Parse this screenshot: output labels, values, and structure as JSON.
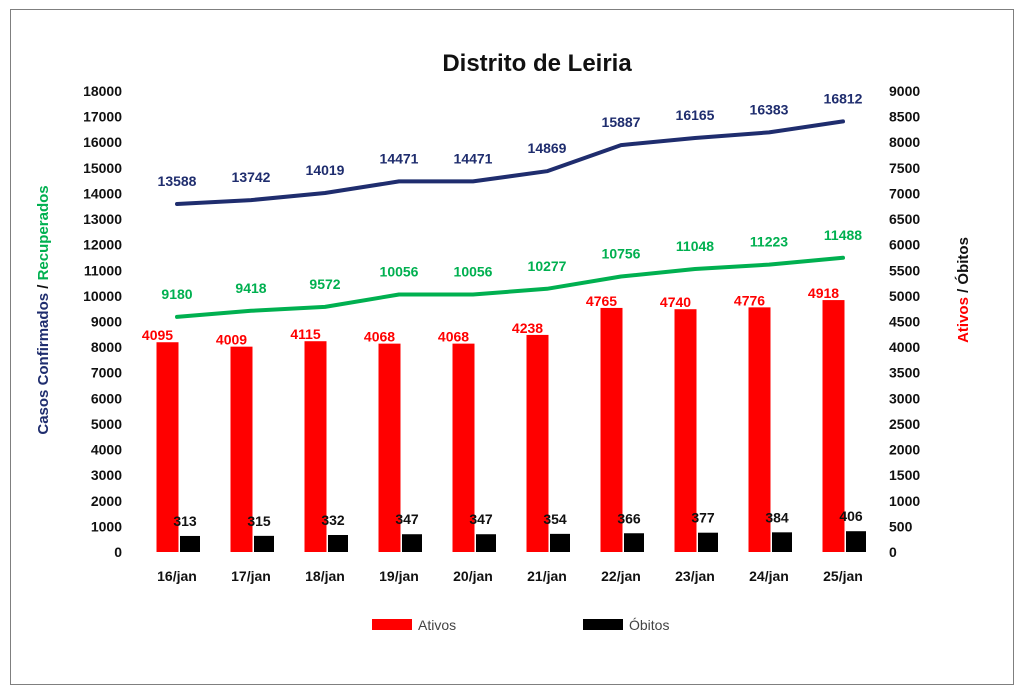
{
  "chart_data": {
    "type": "bar",
    "title": "Distrito de Leiria",
    "categories": [
      "16/jan",
      "17/jan",
      "18/jan",
      "19/jan",
      "20/jan",
      "21/jan",
      "22/jan",
      "23/jan",
      "24/jan",
      "25/jan"
    ],
    "y_left": {
      "ylim": [
        0,
        18000
      ],
      "ticks": [
        "0",
        "1000",
        "2000",
        "3000",
        "4000",
        "5000",
        "6000",
        "7000",
        "8000",
        "9000",
        "10000",
        "11000",
        "12000",
        "13000",
        "14000",
        "15000",
        "16000",
        "17000",
        "18000"
      ],
      "label_parts": [
        {
          "text": "Casos Confirmados",
          "color": "#1f2d6e"
        },
        {
          "text": " / ",
          "color": "#111111"
        },
        {
          "text": "Recuperados",
          "color": "#00b050"
        }
      ]
    },
    "y_right": {
      "ylim": [
        0,
        9000
      ],
      "ticks": [
        "0",
        "500",
        "1000",
        "1500",
        "2000",
        "2500",
        "3000",
        "3500",
        "4000",
        "4500",
        "5000",
        "5500",
        "6000",
        "6500",
        "7000",
        "7500",
        "8000",
        "8500",
        "9000"
      ],
      "label_parts": [
        {
          "text": "Ativos",
          "color": "#ff0000"
        },
        {
          "text": " / ",
          "color": "#111111"
        },
        {
          "text": "Óbitos",
          "color": "#111111"
        }
      ]
    },
    "series": [
      {
        "name": "",
        "type": "line",
        "axis": "left",
        "color": "#1f2d6e",
        "values": [
          13588,
          13742,
          14019,
          14471,
          14471,
          14869,
          15887,
          16165,
          16383,
          16812
        ]
      },
      {
        "name": "",
        "type": "line",
        "axis": "left",
        "color": "#00b050",
        "values": [
          9180,
          9418,
          9572,
          10056,
          10056,
          10277,
          10756,
          11048,
          11223,
          11488
        ]
      },
      {
        "name": "Ativos",
        "type": "bar",
        "axis": "right",
        "color": "#ff0000",
        "values": [
          4095,
          4009,
          4115,
          4068,
          4068,
          4238,
          4765,
          4740,
          4776,
          4918
        ]
      },
      {
        "name": "Óbitos",
        "type": "bar",
        "axis": "right",
        "color": "#000000",
        "values": [
          313,
          315,
          332,
          347,
          347,
          354,
          366,
          377,
          384,
          406
        ]
      }
    ],
    "legend": {
      "position": "bottom",
      "items": [
        "Ativos",
        "Óbitos"
      ]
    },
    "grid": false
  }
}
